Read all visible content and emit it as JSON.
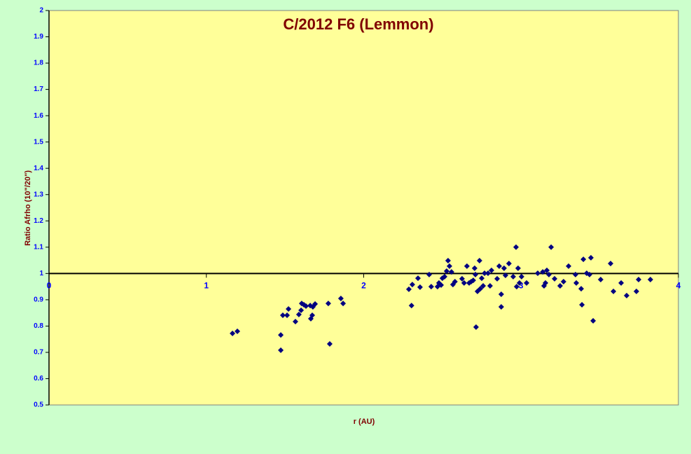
{
  "chart_data": {
    "type": "scatter",
    "title": "C/2012 F6 (Lemmon)",
    "x_label": "r (AU)",
    "y_label": "Ratio Afrho (10\"/20\")",
    "xlim": [
      0,
      4
    ],
    "xticks": [
      0,
      1,
      2,
      3,
      4
    ],
    "ylim": [
      0.5,
      2
    ],
    "yticks": [
      0.5,
      0.6,
      0.7,
      0.8,
      0.9,
      1,
      1.1,
      1.2,
      1.3,
      1.4,
      1.5,
      1.6,
      1.7,
      1.8,
      1.9,
      2
    ],
    "x_axis_crosses_at": 1,
    "grid": false,
    "color": "#000080",
    "x": [
      1.166,
      1.197,
      1.473,
      1.473,
      1.486,
      1.513,
      1.522,
      1.566,
      1.588,
      1.602,
      1.606,
      1.62,
      1.633,
      1.66,
      1.664,
      1.673,
      1.677,
      1.691,
      1.775,
      1.784,
      1.855,
      1.869,
      2.287,
      2.304,
      2.309,
      2.345,
      2.358,
      2.416,
      2.429,
      2.469,
      2.478,
      2.492,
      2.5,
      2.514,
      2.527,
      2.536,
      2.545,
      2.558,
      2.567,
      2.58,
      2.625,
      2.638,
      2.656,
      2.67,
      2.683,
      2.696,
      2.705,
      2.71,
      2.714,
      2.723,
      2.736,
      2.741,
      2.75,
      2.759,
      2.768,
      2.79,
      2.803,
      2.812,
      2.848,
      2.861,
      2.874,
      2.874,
      2.892,
      2.901,
      2.923,
      2.95,
      2.968,
      2.972,
      2.981,
      2.99,
      3.003,
      3.035,
      3.106,
      3.138,
      3.146,
      3.155,
      3.164,
      3.177,
      3.191,
      3.213,
      3.248,
      3.27,
      3.302,
      3.346,
      3.351,
      3.382,
      3.387,
      3.396,
      3.417,
      3.435,
      3.444,
      3.458,
      3.506,
      3.569,
      3.587,
      3.636,
      3.671,
      3.733,
      3.747,
      3.822
    ],
    "y": [
      0.772,
      0.78,
      0.766,
      0.708,
      0.841,
      0.841,
      0.865,
      0.817,
      0.844,
      0.86,
      0.886,
      0.881,
      0.876,
      0.878,
      0.828,
      0.841,
      0.873,
      0.884,
      0.886,
      0.732,
      0.905,
      0.886,
      0.94,
      0.878,
      0.958,
      0.982,
      0.948,
      0.996,
      0.95,
      0.95,
      0.964,
      0.956,
      0.982,
      0.988,
      1.009,
      1.049,
      1.028,
      1.006,
      0.958,
      0.969,
      0.98,
      0.964,
      1.028,
      0.964,
      0.969,
      0.974,
      1.02,
      0.996,
      0.796,
      0.932,
      1.049,
      0.942,
      0.982,
      0.953,
      1.001,
      1.001,
      0.953,
      1.012,
      0.98,
      1.028,
      0.873,
      0.921,
      1.02,
      0.993,
      1.038,
      0.988,
      1.1,
      0.95,
      1.02,
      0.964,
      0.988,
      0.964,
      1.001,
      1.006,
      0.953,
      0.964,
      1.012,
      0.996,
      1.1,
      0.98,
      0.953,
      0.969,
      1.028,
      0.996,
      0.964,
      0.942,
      0.881,
      1.054,
      1.001,
      0.996,
      1.06,
      0.82,
      0.977,
      1.038,
      0.932,
      0.964,
      0.916,
      0.932,
      0.977,
      0.977
    ]
  }
}
